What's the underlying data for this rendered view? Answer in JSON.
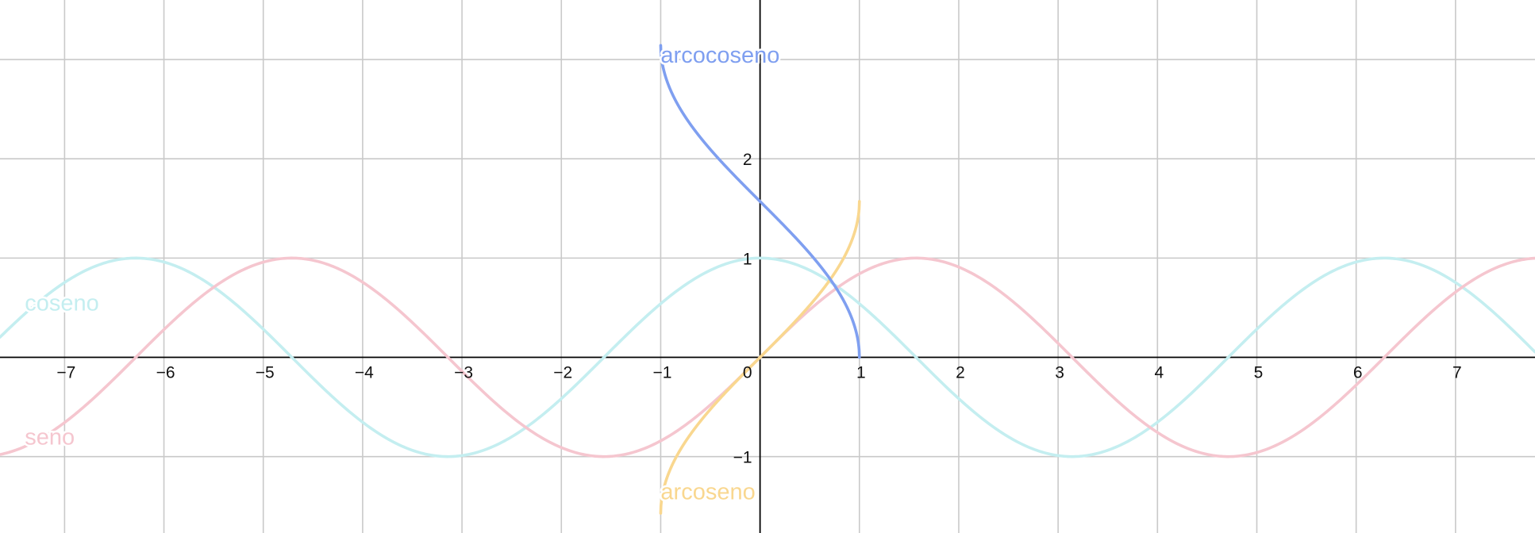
{
  "chart_data": {
    "type": "line",
    "xlim": [
      -7.65,
      7.8
    ],
    "ylim": [
      -1.77,
      3.6
    ],
    "grid": true,
    "x_ticks": [
      -7,
      -6,
      -5,
      -4,
      -3,
      -2,
      -1,
      0,
      1,
      2,
      3,
      4,
      5,
      6,
      7
    ],
    "x_tick_labels": [
      "−7",
      "−6",
      "−5",
      "−4",
      "−3",
      "−2",
      "−1",
      "0",
      "1",
      "2",
      "3",
      "4",
      "5",
      "6",
      "7"
    ],
    "y_ticks": [
      -1,
      1,
      2,
      3
    ],
    "y_tick_labels": [
      "−1",
      "1",
      "2",
      ""
    ],
    "series": [
      {
        "name": "coseno",
        "function": "cos",
        "domain": [
          -7.65,
          7.8
        ],
        "color": "#c4eef0",
        "label_at": [
          -7.4,
          0.55
        ]
      },
      {
        "name": "seno",
        "function": "sin",
        "domain": [
          -7.65,
          7.8
        ],
        "color": "#f5c6cf",
        "label_at": [
          -7.4,
          -0.8
        ]
      },
      {
        "name": "arcoseno",
        "function": "asin",
        "domain": [
          -1,
          1
        ],
        "color": "#f9d78f",
        "label_at": [
          -1,
          -1.35
        ]
      },
      {
        "name": "arcocoseno",
        "function": "acos",
        "domain": [
          -1,
          1
        ],
        "color": "#7f9ff0",
        "label_at": [
          -1,
          3.05
        ]
      }
    ]
  }
}
